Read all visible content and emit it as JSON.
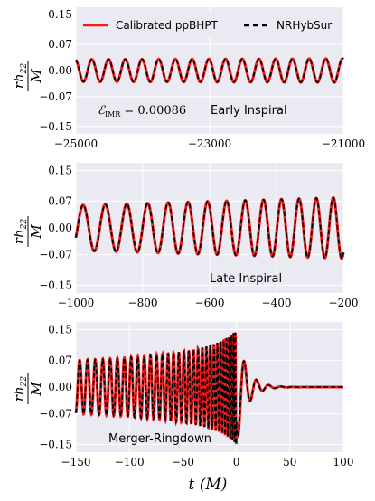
{
  "colors": {
    "calibrated": "#e8201e",
    "nrhybsur": "#000000",
    "panel_bg": "#eaeaf2",
    "grid": "#ffffff"
  },
  "legend": {
    "calibrated": "Calibrated ppBHPT",
    "nrhybsur": "NRHybSur",
    "placement": "top"
  },
  "xlabel": "t (M)",
  "ylabel": "rh22/M",
  "chart_data": [
    {
      "type": "line",
      "annotation": "Early Inspiral",
      "error_label": "ℰIMR = 0.00086",
      "xlim": [
        -25000,
        -21000
      ],
      "ylim": [
        -0.17,
        0.17
      ],
      "xticks": [
        -25000,
        -23000,
        -21000
      ],
      "xtick_labels": [
        "−25000",
        "−23000",
        "−21000"
      ],
      "yticks": [
        0.15,
        0.07,
        0.0,
        -0.07,
        -0.15
      ],
      "ytick_labels": [
        "0.15",
        "0.07",
        "0.00",
        "−0.07",
        "−0.15"
      ],
      "waveform": {
        "amp_start": 0.03,
        "amp_end": 0.032,
        "cycles": 16,
        "t_merge": 0
      },
      "series": [
        {
          "name": "Calibrated ppBHPT",
          "style": "solid"
        },
        {
          "name": "NRHybSur",
          "style": "dashed"
        }
      ]
    },
    {
      "type": "line",
      "annotation": "Late Inspiral",
      "xlim": [
        -1000,
        -200
      ],
      "ylim": [
        -0.17,
        0.17
      ],
      "xticks": [
        -1000,
        -800,
        -600,
        -400,
        -200
      ],
      "xtick_labels": [
        "−1000",
        "−800",
        "−600",
        "−400",
        "−200"
      ],
      "yticks": [
        0.15,
        0.07,
        0.0,
        -0.07,
        -0.15
      ],
      "ytick_labels": [
        "0.15",
        "0.07",
        "0.00",
        "−0.07",
        "−0.15"
      ],
      "waveform": {
        "amp_start": 0.059,
        "amp_end": 0.08,
        "cycles": 11.8,
        "t_merge": 0
      },
      "series": [
        {
          "name": "Calibrated ppBHPT",
          "style": "solid"
        },
        {
          "name": "NRHybSur",
          "style": "dashed"
        }
      ]
    },
    {
      "type": "line",
      "annotation": "Merger-Ringdown",
      "xlim": [
        -150,
        100
      ],
      "ylim": [
        -0.17,
        0.17
      ],
      "xticks": [
        -150,
        -100,
        -50,
        0,
        50,
        100
      ],
      "xtick_labels": [
        "−150",
        "−100",
        "−50",
        "0",
        "50",
        "100"
      ],
      "yticks": [
        0.15,
        0.07,
        0.0,
        -0.07,
        -0.15
      ],
      "ytick_labels": [
        "0.15",
        "0.07",
        "0.00",
        "−0.07",
        "−0.15"
      ],
      "waveform": {
        "amp_start": 0.085,
        "peak_amp": 0.152,
        "t_peak": 0,
        "ringdown_tau": 9,
        "ringdown_omega": 0.55
      },
      "series": [
        {
          "name": "Calibrated ppBHPT",
          "style": "solid"
        },
        {
          "name": "NRHybSur",
          "style": "dashed"
        }
      ]
    }
  ]
}
